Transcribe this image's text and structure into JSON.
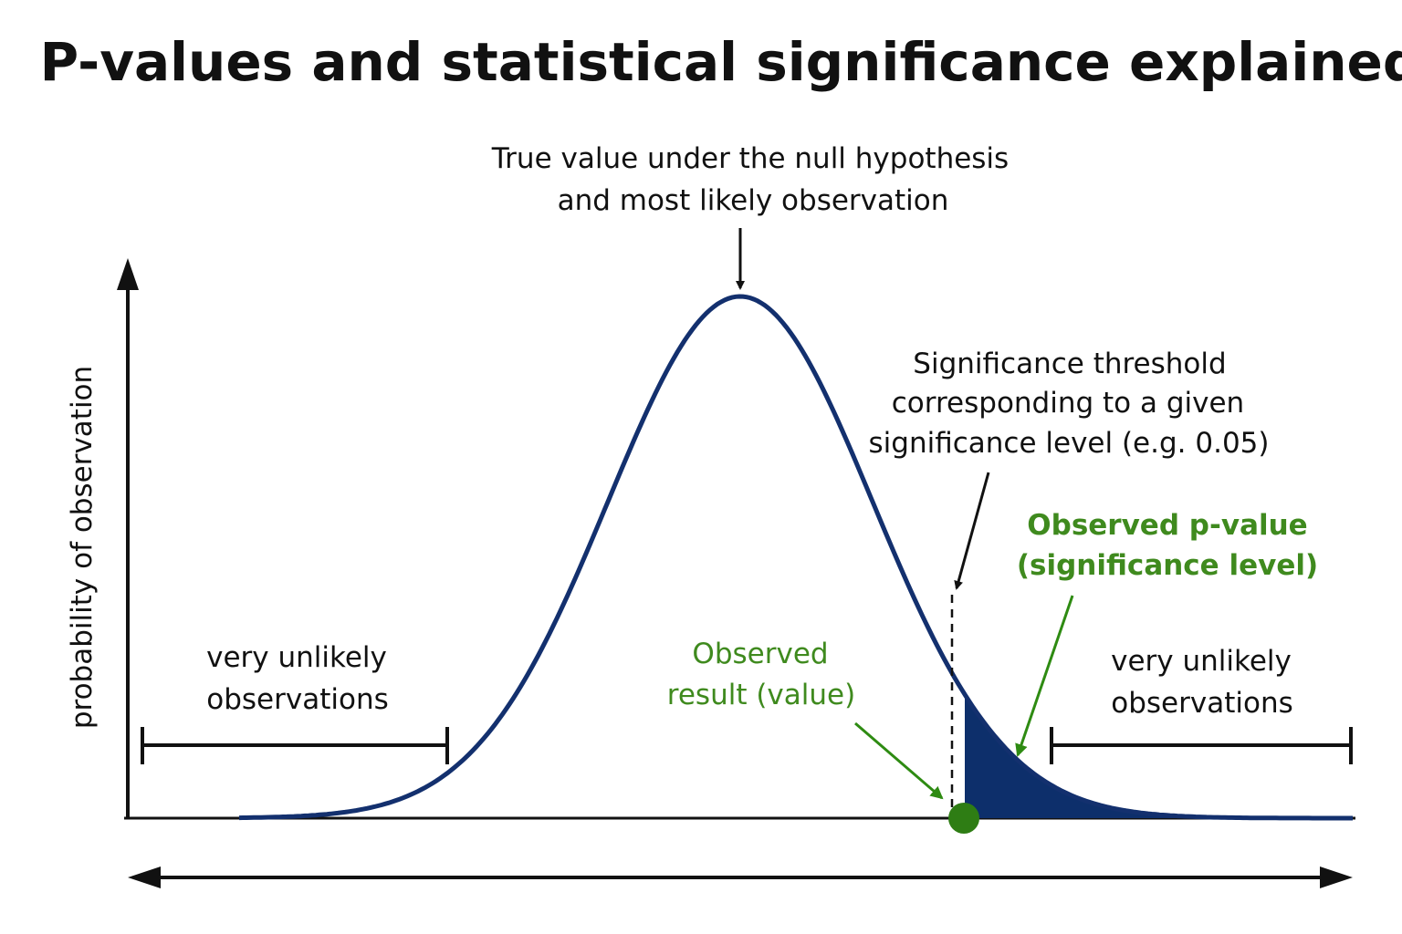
{
  "title": "P-values and statistical significance explained",
  "y_axis_label": "probability of observation",
  "null_label": [
    "True value under the null hypothesis",
    "and most likely observation"
  ],
  "threshold_label": [
    "Significance threshold",
    "corresponding to a given",
    "significance level (e.g. 0.05)"
  ],
  "p_value_label": [
    "Observed p-value",
    "(significance level)"
  ],
  "observed_label": [
    "Observed",
    "result (value)"
  ],
  "left_label": [
    "very unlikely",
    "observations"
  ],
  "right_label": [
    "very unlikely",
    "observations"
  ]
}
